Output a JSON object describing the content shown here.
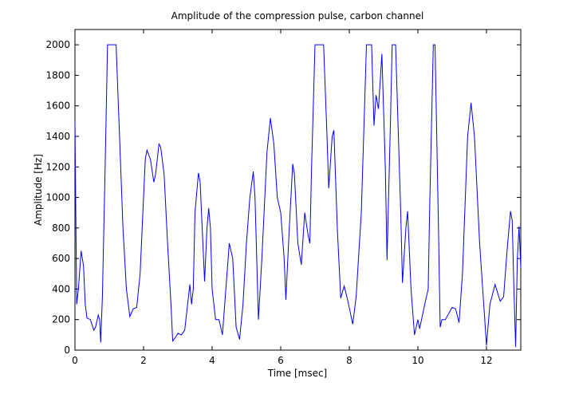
{
  "chart_data": {
    "type": "line",
    "title": "Amplitude of the compression pulse, carbon channel",
    "x_label": "Time [msec]",
    "y_label": "Amplitude [Hz]",
    "xlim": [
      0,
      13
    ],
    "ylim": [
      0,
      2100
    ],
    "xticks": [
      0,
      2,
      4,
      6,
      8,
      10,
      12
    ],
    "yticks": [
      0,
      200,
      400,
      600,
      800,
      1000,
      1200,
      1400,
      1600,
      1800,
      2000
    ],
    "grid": false,
    "series": [
      {
        "color": "#0000ff",
        "x": [
          0,
          0.05,
          0.1,
          0.18,
          0.25,
          0.3,
          0.35,
          0.45,
          0.55,
          0.6,
          0.68,
          0.72,
          0.75,
          0.8,
          0.88,
          0.95,
          1.2,
          1.3,
          1.4,
          1.5,
          1.6,
          1.7,
          1.8,
          1.9,
          2.0,
          2.05,
          2.1,
          2.2,
          2.3,
          2.35,
          2.45,
          2.5,
          2.6,
          2.7,
          2.8,
          2.85,
          2.95,
          3.0,
          3.1,
          3.2,
          3.35,
          3.4,
          3.45,
          3.5,
          3.6,
          3.65,
          3.75,
          3.78,
          3.85,
          3.9,
          3.95,
          4.0,
          4.1,
          4.2,
          4.3,
          4.4,
          4.5,
          4.6,
          4.7,
          4.8,
          4.9,
          5.0,
          5.1,
          5.2,
          5.25,
          5.35,
          5.45,
          5.6,
          5.7,
          5.8,
          5.9,
          6.0,
          6.1,
          6.15,
          6.25,
          6.35,
          6.4,
          6.5,
          6.6,
          6.7,
          6.8,
          6.85,
          6.9,
          7.0,
          7.25,
          7.35,
          7.4,
          7.5,
          7.55,
          7.65,
          7.75,
          7.85,
          7.95,
          8.1,
          8.2,
          8.35,
          8.5,
          8.65,
          8.72,
          8.78,
          8.85,
          8.95,
          9.05,
          9.1,
          9.2,
          9.25,
          9.35,
          9.5,
          9.55,
          9.65,
          9.7,
          9.8,
          9.9,
          10.0,
          10.05,
          10.2,
          10.3,
          10.35,
          10.45,
          10.5,
          10.6,
          10.65,
          10.7,
          10.8,
          11.0,
          11.1,
          11.2,
          11.3,
          11.45,
          11.55,
          11.65,
          11.8,
          11.95,
          12.0,
          12.1,
          12.25,
          12.4,
          12.5,
          12.6,
          12.7,
          12.75,
          12.8,
          12.85,
          12.9,
          12.95,
          13.0
        ],
        "values": [
          1500,
          300,
          400,
          650,
          550,
          300,
          210,
          200,
          130,
          150,
          230,
          200,
          50,
          350,
          1200,
          2000,
          2000,
          1400,
          800,
          400,
          220,
          270,
          280,
          500,
          1000,
          1250,
          1310,
          1250,
          1100,
          1150,
          1350,
          1330,
          1150,
          700,
          300,
          60,
          90,
          110,
          100,
          130,
          430,
          300,
          400,
          900,
          1160,
          1100,
          600,
          450,
          800,
          930,
          800,
          400,
          200,
          200,
          100,
          400,
          700,
          600,
          150,
          70,
          300,
          700,
          1000,
          1170,
          1000,
          200,
          600,
          1300,
          1520,
          1350,
          1000,
          900,
          600,
          330,
          800,
          1220,
          1150,
          700,
          560,
          900,
          750,
          700,
          1200,
          2000,
          2000,
          1400,
          1060,
          1400,
          1440,
          800,
          340,
          420,
          330,
          170,
          350,
          900,
          2000,
          2000,
          1470,
          1670,
          1580,
          1940,
          1200,
          590,
          1500,
          2000,
          2000,
          900,
          440,
          800,
          910,
          400,
          100,
          200,
          140,
          300,
          400,
          1000,
          2000,
          2000,
          800,
          150,
          200,
          200,
          280,
          270,
          180,
          500,
          1400,
          1620,
          1400,
          700,
          200,
          30,
          300,
          430,
          320,
          350,
          650,
          910,
          850,
          400,
          20,
          600,
          810,
          540
        ]
      }
    ]
  }
}
